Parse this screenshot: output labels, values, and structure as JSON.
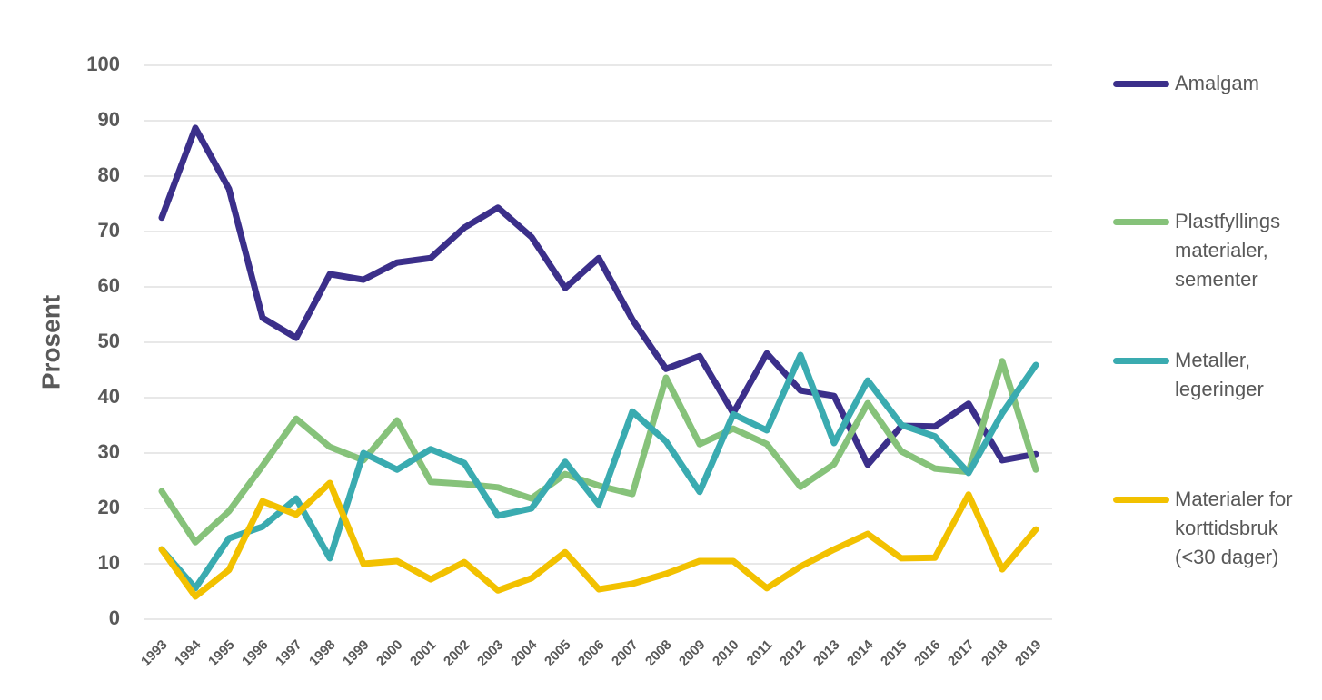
{
  "chart_data": {
    "type": "line",
    "y_label": "Prosent",
    "x": [
      "1993",
      "1994",
      "1995",
      "1996",
      "1997",
      "1998",
      "1999",
      "2000",
      "2001",
      "2002",
      "2003",
      "2004",
      "2005",
      "2006",
      "2007",
      "2008",
      "2009",
      "2010",
      "2011",
      "2012",
      "2013",
      "2014",
      "2015",
      "2016",
      "2017",
      "2018",
      "2019"
    ],
    "series": [
      {
        "name": "Amalgam",
        "color": "#3b2f8a",
        "values": [
          72.5,
          88.7,
          77.7,
          54.4,
          50.8,
          62.3,
          61.3,
          64.4,
          65.2,
          70.7,
          74.3,
          69.0,
          59.8,
          65.2,
          54.1,
          45.2,
          47.5,
          37.2,
          48.0,
          41.3,
          40.3,
          27.9,
          34.9,
          34.8,
          38.9,
          28.7,
          29.8
        ]
      },
      {
        "name": "Plastfyllings materialer, sementer",
        "color": "#86c27a",
        "values": [
          23.1,
          13.9,
          19.5,
          27.7,
          36.2,
          31.1,
          28.7,
          35.9,
          24.8,
          24.4,
          23.8,
          21.8,
          26.2,
          24.1,
          22.6,
          43.6,
          31.6,
          34.4,
          31.6,
          23.9,
          28.0,
          39.0,
          30.3,
          27.2,
          26.6,
          46.6,
          27.0
        ]
      },
      {
        "name": "Metaller, legeringer",
        "color": "#3aabb0",
        "values": [
          12.6,
          5.6,
          14.6,
          16.7,
          21.8,
          11.0,
          30.0,
          27.0,
          30.7,
          28.2,
          18.7,
          20.0,
          28.4,
          20.7,
          37.5,
          32.1,
          23.0,
          37.0,
          34.1,
          47.7,
          31.8,
          43.1,
          35.1,
          33.0,
          26.4,
          37.2,
          45.9
        ]
      },
      {
        "name": "Materialer for korttidsbruk (<30 dager)",
        "color": "#f2c100",
        "values": [
          12.6,
          4.1,
          8.9,
          21.3,
          18.9,
          24.6,
          10.0,
          10.5,
          7.2,
          10.3,
          5.2,
          7.4,
          12.1,
          5.4,
          6.4,
          8.2,
          10.5,
          10.5,
          5.6,
          9.5,
          12.6,
          15.4,
          11.0,
          11.1,
          22.5,
          9.0,
          16.2
        ]
      }
    ],
    "ylim": [
      0,
      100
    ],
    "yticks": [
      0,
      10,
      20,
      30,
      40,
      50,
      60,
      70,
      80,
      90,
      100
    ],
    "grid": true
  }
}
